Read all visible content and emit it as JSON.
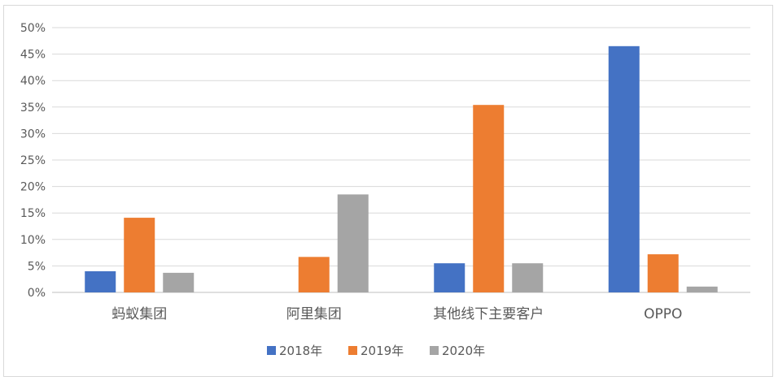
{
  "chart_data": {
    "type": "bar",
    "categories": [
      "蚂蚁集团",
      "阿里集团",
      "其他线下主要客户",
      "OPPO"
    ],
    "series": [
      {
        "name": "2018年",
        "values": [
          4.0,
          0,
          5.5,
          46.5
        ],
        "color": "#4472c4"
      },
      {
        "name": "2019年",
        "values": [
          14.1,
          6.7,
          35.4,
          7.2
        ],
        "color": "#ed7d31"
      },
      {
        "name": "2020年",
        "values": [
          3.7,
          18.5,
          5.5,
          1.1
        ],
        "color": "#a5a5a5"
      }
    ],
    "yticks": [
      "0%",
      "5%",
      "10%",
      "15%",
      "20%",
      "25%",
      "30%",
      "35%",
      "40%",
      "45%",
      "50%"
    ],
    "ylim": [
      0,
      50
    ],
    "grid": true,
    "legend_position": "bottom"
  }
}
